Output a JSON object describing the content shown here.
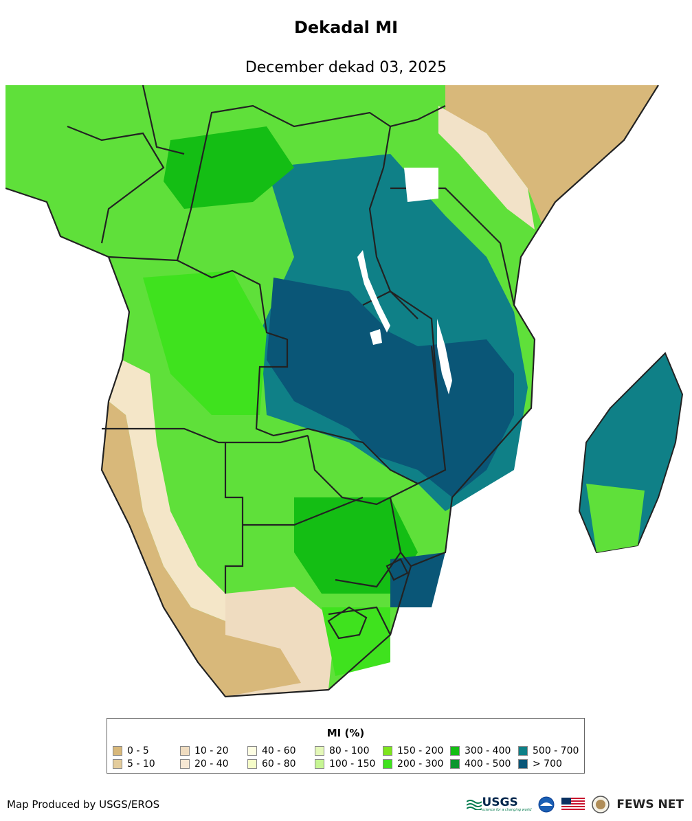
{
  "title": "Dekadal MI",
  "subtitle": "December dekad 03, 2025",
  "legend": {
    "title": "MI (%)",
    "items": [
      {
        "label": "0 - 5",
        "color": "#d8b87a"
      },
      {
        "label": "5 - 10",
        "color": "#e3cc9c"
      },
      {
        "label": "10 - 20",
        "color": "#efdcc0"
      },
      {
        "label": "20 - 40",
        "color": "#f6e8d4"
      },
      {
        "label": "40 - 60",
        "color": "#fdfde2"
      },
      {
        "label": "60 - 80",
        "color": "#f5fcc8"
      },
      {
        "label": "80 - 100",
        "color": "#e4f8b8"
      },
      {
        "label": "100 - 150",
        "color": "#c6f593"
      },
      {
        "label": "150 - 200",
        "color": "#7ee51e"
      },
      {
        "label": "200 - 300",
        "color": "#3fe21e"
      },
      {
        "label": "300 - 400",
        "color": "#14be14"
      },
      {
        "label": "400 - 500",
        "color": "#0c962e"
      },
      {
        "label": "500 - 700",
        "color": "#0f8087"
      },
      {
        "label": "> 700",
        "color": "#0a5677"
      }
    ]
  },
  "credit": "Map Produced by USGS/EROS",
  "logos": {
    "usgs": "USGS",
    "usgs_tagline": "science for a changing world",
    "fews": "FEWS NET"
  }
}
